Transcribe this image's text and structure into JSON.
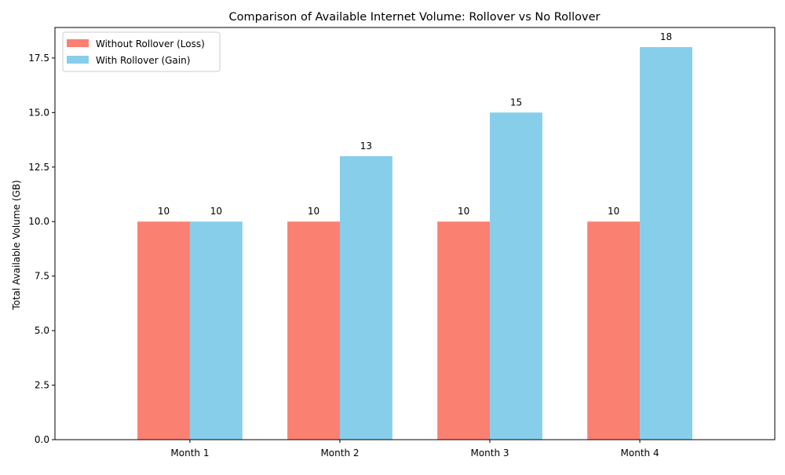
{
  "chart_data": {
    "type": "bar",
    "title": "Comparison of Available Internet Volume: Rollover vs No Rollover",
    "xlabel": "",
    "ylabel": "Total Available Volume (GB)",
    "categories": [
      "Month 1",
      "Month 2",
      "Month 3",
      "Month 4"
    ],
    "series": [
      {
        "name": "Without Rollover (Loss)",
        "values": [
          10,
          10,
          10,
          10
        ],
        "color": "#fa8072"
      },
      {
        "name": "With Rollover (Gain)",
        "values": [
          10,
          13,
          15,
          18
        ],
        "color": "#87ceeb"
      }
    ],
    "ylim": [
      0,
      18.9
    ],
    "yticks": [
      0.0,
      2.5,
      5.0,
      7.5,
      10.0,
      12.5,
      15.0,
      17.5
    ],
    "ytick_labels": [
      "0.0",
      "2.5",
      "5.0",
      "7.5",
      "10.0",
      "12.5",
      "15.0",
      "17.5"
    ],
    "grid": false,
    "legend_position": "top-left",
    "data_labels": true
  }
}
